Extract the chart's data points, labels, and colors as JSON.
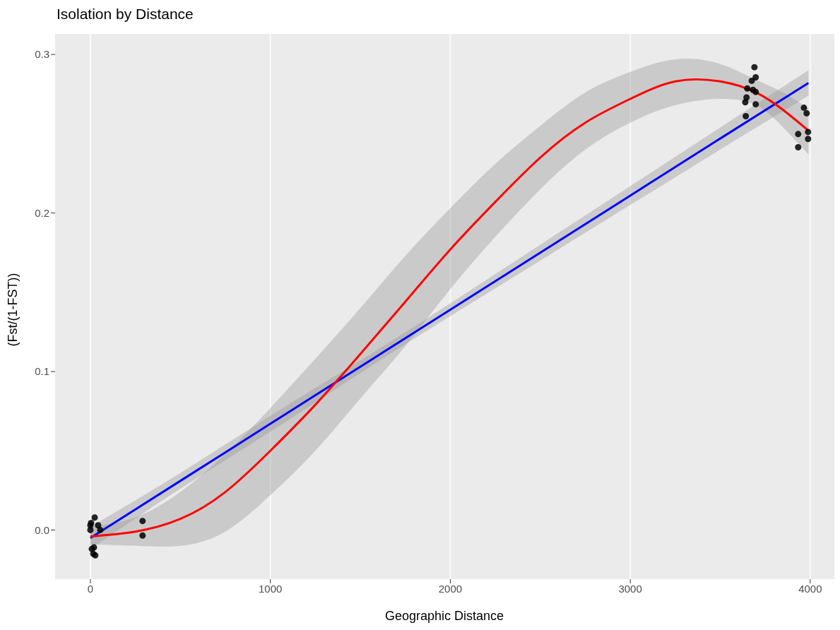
{
  "chart_data": {
    "type": "scatter",
    "title": "Isolation by Distance",
    "xlabel": "Geographic Distance",
    "ylabel": "(Fst/(1-FST))",
    "xlim": [
      -196,
      4134
    ],
    "ylim": [
      -0.031,
      0.313
    ],
    "xticks": [
      0,
      1000,
      2000,
      3000,
      4000
    ],
    "yticks": [
      {
        "value": 0,
        "label": "0.0"
      },
      0.1,
      0.2,
      0.3
    ],
    "grid": true,
    "legend": false,
    "series": [
      {
        "color": "#000000",
        "x": [
          24,
          4,
          0,
          0,
          43,
          55,
          20,
          8,
          27,
          16,
          290,
          290,
          3690,
          3697,
          3675,
          3650,
          3682,
          3697,
          3646,
          3639,
          3697,
          3642,
          3965,
          3980,
          3988,
          3933,
          3988,
          3933
        ],
        "values": [
          0.0079,
          0.0044,
          0.003,
          0.0,
          0.003,
          0.0,
          -0.011,
          -0.012,
          -0.016,
          -0.015,
          0.0057,
          -0.0035,
          0.292,
          0.2856,
          0.2834,
          0.2786,
          0.2777,
          0.2764,
          0.2729,
          0.2699,
          0.2686,
          0.2611,
          0.2664,
          0.2629,
          0.2511,
          0.2498,
          0.2467,
          0.2415
        ]
      },
      {
        "type": "line",
        "color": "#0000ff",
        "x": [
          0,
          500,
          1000,
          1500,
          2000,
          2500,
          3000,
          3500,
          3990
        ],
        "values": [
          -0.005,
          0.031,
          0.067,
          0.103,
          0.139,
          0.175,
          0.211,
          0.247,
          0.282
        ],
        "lower": [
          -0.012,
          0.026,
          0.062,
          0.099,
          0.135,
          0.17,
          0.205,
          0.24,
          0.274
        ],
        "upper": [
          0.002,
          0.036,
          0.072,
          0.107,
          0.143,
          0.18,
          0.217,
          0.254,
          0.29
        ]
      },
      {
        "type": "line",
        "color": "#ff0000",
        "x": [
          0,
          250,
          500,
          750,
          1000,
          1250,
          1500,
          1750,
          2000,
          2250,
          2500,
          2750,
          3000,
          3250,
          3500,
          3700,
          3850,
          3990
        ],
        "values": [
          -0.004,
          -0.001,
          0.007,
          0.024,
          0.05,
          0.079,
          0.111,
          0.144,
          0.177,
          0.207,
          0.235,
          0.257,
          0.272,
          0.283,
          0.283,
          0.276,
          0.265,
          0.252
        ],
        "lower": [
          -0.009,
          -0.01,
          -0.01,
          -0.001,
          0.022,
          0.05,
          0.083,
          0.116,
          0.152,
          0.185,
          0.215,
          0.24,
          0.257,
          0.268,
          0.272,
          0.268,
          0.254,
          0.237
        ],
        "upper": [
          0.002,
          0.008,
          0.024,
          0.048,
          0.077,
          0.108,
          0.14,
          0.173,
          0.203,
          0.231,
          0.255,
          0.276,
          0.289,
          0.297,
          0.294,
          0.284,
          0.276,
          0.266
        ]
      }
    ]
  }
}
